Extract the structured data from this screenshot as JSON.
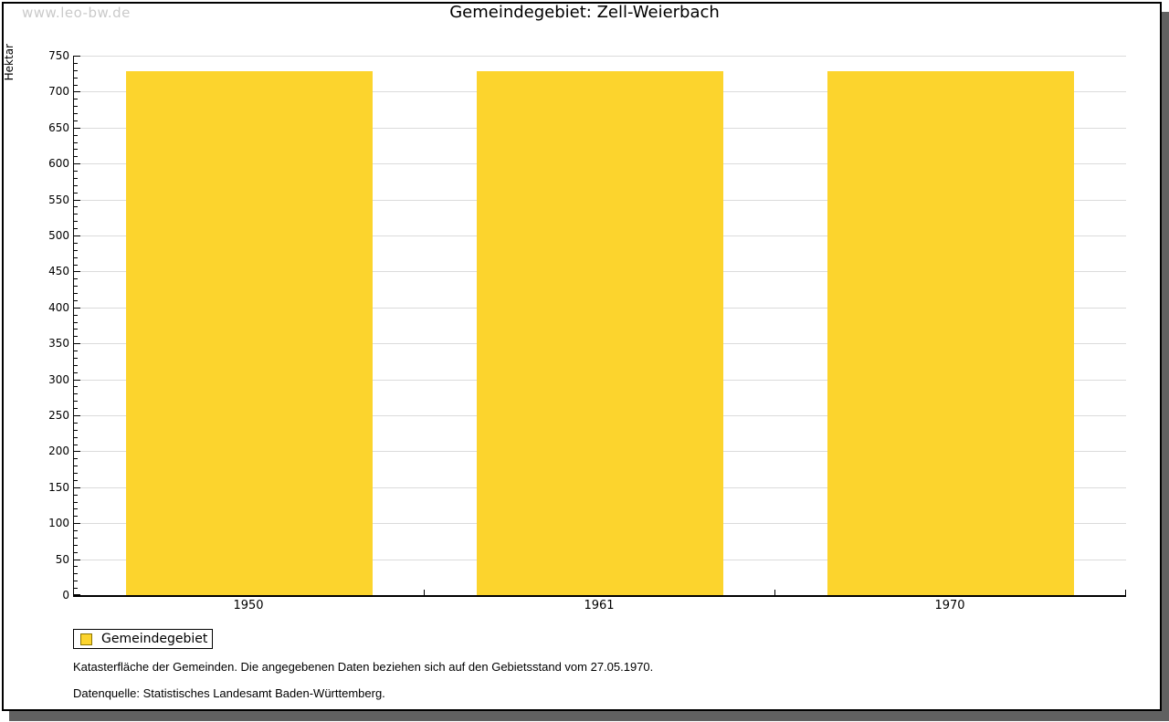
{
  "watermark": "www.leo-bw.de",
  "header": {
    "title": "Gemeindegebiet: Zell-Weierbach"
  },
  "chart_data": {
    "type": "bar",
    "title": "Gemeindegebiet: Zell-Weierbach",
    "categories": [
      "1950",
      "1961",
      "1970"
    ],
    "series": [
      {
        "name": "Gemeindegebiet",
        "values": [
          729,
          729,
          729
        ]
      }
    ],
    "xlabel": "",
    "ylabel": "Hektar",
    "unit": "Hektar",
    "ylim": [
      0,
      750
    ],
    "yticks": [
      0,
      50,
      100,
      150,
      200,
      250,
      300,
      350,
      400,
      450,
      500,
      550,
      600,
      650,
      700,
      750
    ],
    "ytick_minor_step": 10,
    "grid": "horizontal-major",
    "legend_position": "below-left",
    "bar_color": "#FCD42D"
  },
  "legend": {
    "label": "Gemeindegebiet",
    "swatch_color": "#FCD42D"
  },
  "footnotes": [
    "Katasterfläche der Gemeinden. Die angegebenen Daten beziehen sich auf den Gebietsstand vom 27.05.1970.",
    "Datenquelle: Statistisches Landesamt Baden-Württemberg."
  ],
  "colors": {
    "bar": "#FCD42D",
    "grid": "#DBDBDB",
    "axis": "#000000",
    "frame_shadow": "#616161",
    "watermark_text": "#CACACA"
  }
}
